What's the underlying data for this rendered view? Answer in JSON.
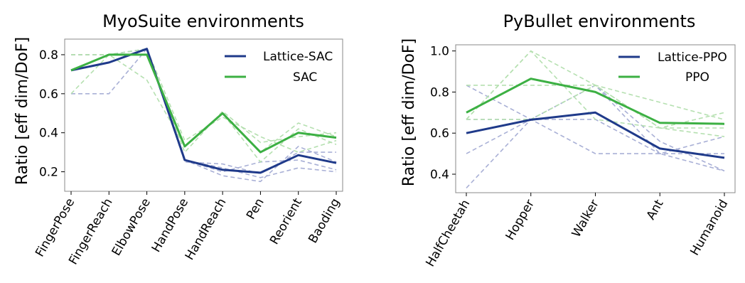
{
  "colors": {
    "lattice": "#1f3a8a",
    "baseline": "#3cb043",
    "lattice_faint": "#a9b0d6",
    "baseline_faint": "#b5e0b0"
  },
  "chart_data": [
    {
      "type": "line",
      "title": "MyoSuite environments",
      "ylabel": "Ratio [eff dim/DoF]",
      "categories": [
        "FingerPose",
        "FingerReach",
        "ElbowPose",
        "HandPose",
        "HandReach",
        "Pen",
        "Reorient",
        "Baoding"
      ],
      "ylim": [
        0.1,
        0.88
      ],
      "yticks": [
        0.2,
        0.4,
        0.6,
        0.8
      ],
      "legend_position": "top-right",
      "series": [
        {
          "name": "Lattice-SAC",
          "color_key": "lattice",
          "values": [
            0.72,
            0.76,
            0.83,
            0.26,
            0.21,
            0.195,
            0.285,
            0.245
          ]
        },
        {
          "name": "SAC",
          "color_key": "baseline",
          "values": [
            0.72,
            0.8,
            0.8,
            0.33,
            0.5,
            0.3,
            0.4,
            0.375
          ]
        }
      ],
      "faint_series": [
        {
          "color_key": "lattice_faint",
          "values": [
            0.6,
            0.6,
            0.83,
            0.26,
            0.18,
            0.15,
            0.33,
            0.25
          ]
        },
        {
          "color_key": "lattice_faint",
          "values": [
            0.72,
            0.76,
            0.83,
            0.25,
            0.24,
            0.19,
            0.3,
            0.3
          ]
        },
        {
          "color_key": "lattice_faint",
          "values": [
            0.8,
            0.8,
            0.83,
            0.26,
            0.2,
            0.25,
            0.26,
            0.21
          ]
        },
        {
          "color_key": "lattice_faint",
          "values": [
            0.8,
            0.8,
            0.83,
            0.26,
            0.22,
            0.17,
            0.22,
            0.2
          ]
        },
        {
          "color_key": "baseline_faint",
          "values": [
            0.6,
            0.8,
            0.67,
            0.33,
            0.5,
            0.3,
            0.45,
            0.38
          ]
        },
        {
          "color_key": "baseline_faint",
          "values": [
            0.72,
            0.8,
            0.8,
            0.3,
            0.51,
            0.35,
            0.38,
            0.4
          ]
        },
        {
          "color_key": "baseline_faint",
          "values": [
            0.8,
            0.8,
            0.83,
            0.36,
            0.48,
            0.38,
            0.3,
            0.36
          ]
        },
        {
          "color_key": "baseline_faint",
          "values": [
            0.8,
            0.8,
            0.8,
            0.33,
            0.5,
            0.25,
            0.42,
            0.34
          ]
        }
      ]
    },
    {
      "type": "line",
      "title": "PyBullet environments",
      "ylabel": "Ratio [eff dim/DoF]",
      "categories": [
        "HalfCheetah",
        "Hopper",
        "Walker",
        "Ant",
        "Humanoid"
      ],
      "ylim": [
        0.31,
        1.03
      ],
      "yticks": [
        0.4,
        0.6,
        0.8,
        1.0
      ],
      "legend_position": "top-right",
      "series": [
        {
          "name": "Lattice-PPO",
          "color_key": "lattice",
          "values": [
            0.6,
            0.665,
            0.7,
            0.525,
            0.48
          ]
        },
        {
          "name": "PPO",
          "color_key": "baseline",
          "values": [
            0.7,
            0.865,
            0.8,
            0.65,
            0.645
          ]
        }
      ],
      "faint_series": [
        {
          "color_key": "lattice_faint",
          "values": [
            0.833,
            0.667,
            0.833,
            0.5,
            0.416
          ]
        },
        {
          "color_key": "lattice_faint",
          "values": [
            0.667,
            0.667,
            0.667,
            0.5,
            0.5
          ]
        },
        {
          "color_key": "lattice_faint",
          "values": [
            0.5,
            0.667,
            0.5,
            0.5,
            0.583
          ]
        },
        {
          "color_key": "lattice_faint",
          "values": [
            0.333,
            0.667,
            0.833,
            0.56,
            0.416
          ]
        },
        {
          "color_key": "baseline_faint",
          "values": [
            0.667,
            1.0,
            0.833,
            0.625,
            0.7
          ]
        },
        {
          "color_key": "baseline_faint",
          "values": [
            0.667,
            0.667,
            0.833,
            0.625,
            0.583
          ]
        },
        {
          "color_key": "baseline_faint",
          "values": [
            0.667,
            1.0,
            0.667,
            0.625,
            0.625
          ]
        },
        {
          "color_key": "baseline_faint",
          "values": [
            0.833,
            0.833,
            0.833,
            0.75,
            0.666
          ]
        }
      ]
    }
  ]
}
